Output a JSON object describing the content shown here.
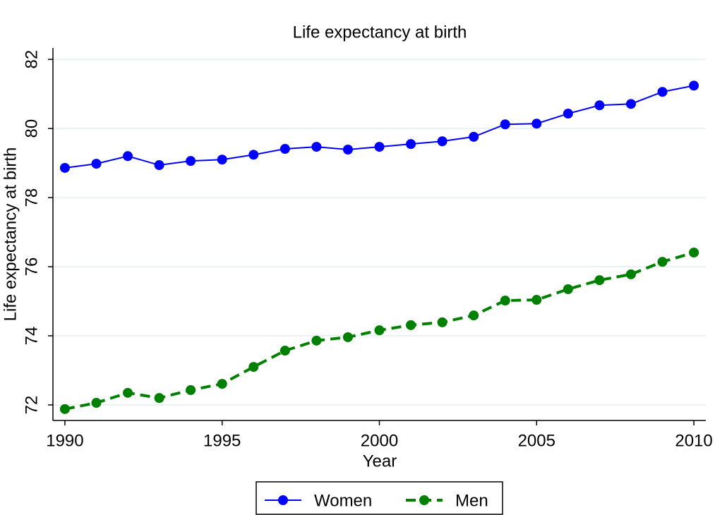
{
  "chart_data": {
    "type": "line",
    "title": "Life expectancy at birth",
    "x_label": "Year",
    "y_label": "Life expectancy at birth",
    "x": [
      1990,
      1991,
      1992,
      1993,
      1994,
      1995,
      1996,
      1997,
      1998,
      1999,
      2000,
      2001,
      2002,
      2003,
      2004,
      2005,
      2006,
      2007,
      2008,
      2009,
      2010
    ],
    "series": [
      {
        "name": "Women",
        "color": "#0000ff",
        "line_style": "solid",
        "values": [
          78.86,
          78.98,
          79.2,
          78.94,
          79.06,
          79.1,
          79.24,
          79.41,
          79.47,
          79.39,
          79.47,
          79.55,
          79.63,
          79.76,
          80.12,
          80.14,
          80.43,
          80.67,
          80.71,
          81.06,
          81.24
        ]
      },
      {
        "name": "Men",
        "color": "#008000",
        "line_style": "dashed",
        "values": [
          71.88,
          72.06,
          72.35,
          72.2,
          72.43,
          72.61,
          73.1,
          73.57,
          73.86,
          73.96,
          74.16,
          74.31,
          74.39,
          74.59,
          75.02,
          75.04,
          75.35,
          75.61,
          75.78,
          76.14,
          76.41
        ]
      }
    ],
    "xlim": [
      1989.62,
      2010.38
    ],
    "xticks": [
      1990,
      1995,
      2000,
      2005,
      2010
    ],
    "ylim": [
      71.55,
      82.33
    ],
    "yticks": [
      72,
      74,
      76,
      78,
      80,
      82
    ],
    "grid": true,
    "legend_position": "bottom"
  }
}
